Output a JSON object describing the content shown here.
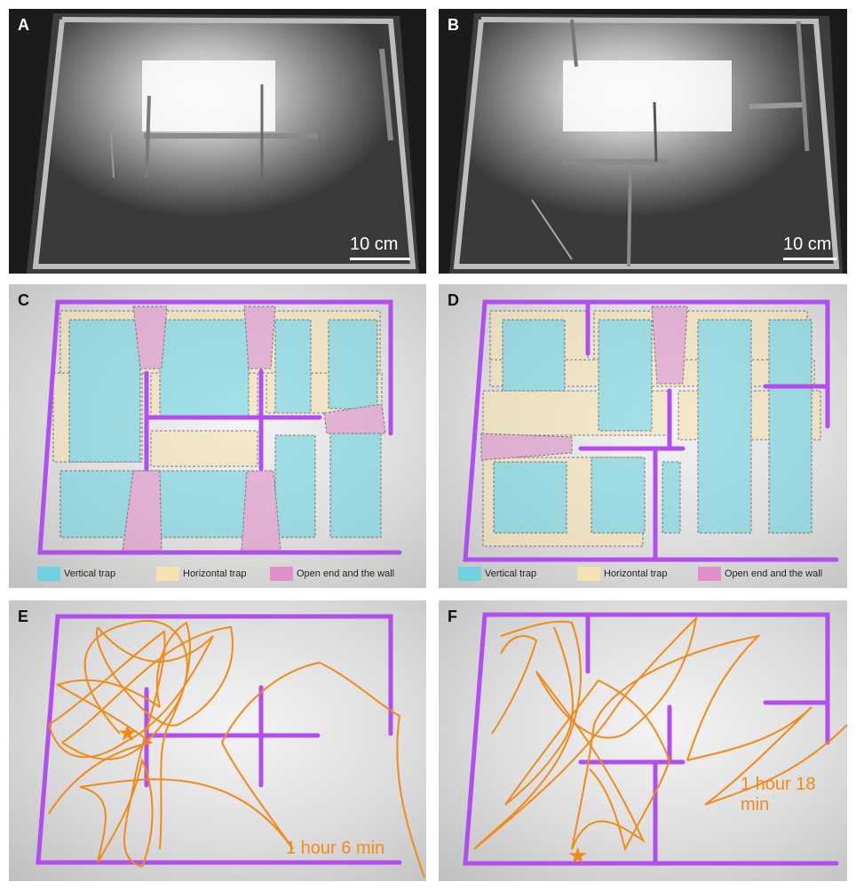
{
  "panels": {
    "a": {
      "label": "A",
      "scale": "10 cm"
    },
    "b": {
      "label": "B",
      "scale": "10 cm"
    },
    "c": {
      "label": "C"
    },
    "d": {
      "label": "D"
    },
    "e": {
      "label": "E",
      "time": "1 hour 6 min"
    },
    "f": {
      "label": "F",
      "time": "1 hour 18 min"
    }
  },
  "legend": {
    "vertical": "Vertical trap",
    "horizontal": "Horizontal trap",
    "open_end": "Open end and the wall"
  },
  "colors": {
    "wall": "#b24df0",
    "vertical_trap": "#6fd3df",
    "horizontal_trap": "#f6e2b0",
    "open_end": "#e08fc8",
    "trajectory": "#f28a17"
  }
}
